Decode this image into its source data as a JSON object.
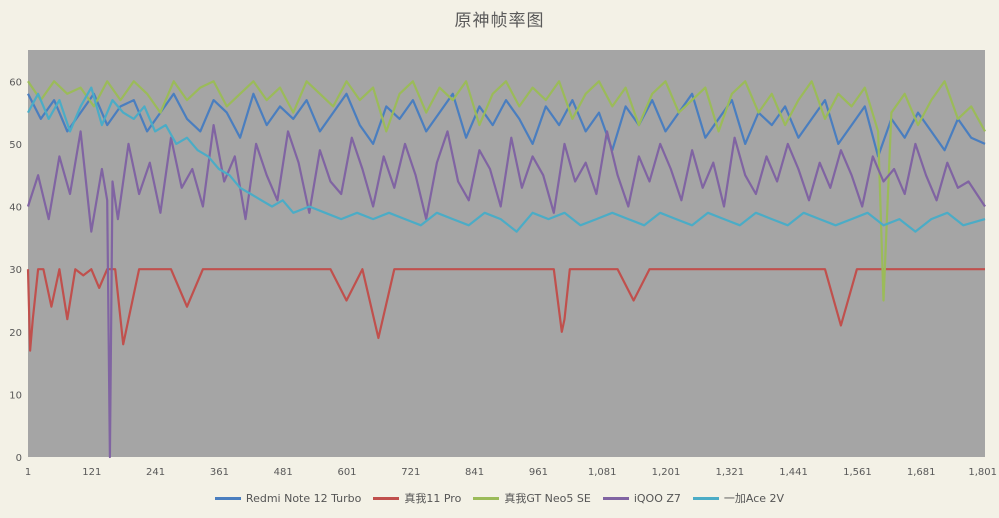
{
  "chart_data": {
    "type": "line",
    "title": "原神帧率图",
    "xlabel": "",
    "ylabel": "",
    "xlim": [
      1,
      1801
    ],
    "ylim": [
      0,
      65
    ],
    "x_ticks": [
      1,
      121,
      241,
      361,
      481,
      601,
      721,
      841,
      961,
      1081,
      1201,
      1321,
      1441,
      1561,
      1681,
      1801
    ],
    "x_tick_labels": [
      "1",
      "121",
      "241",
      "361",
      "481",
      "601",
      "721",
      "841",
      "961",
      "1,081",
      "1,201",
      "1,321",
      "1,441",
      "1,561",
      "1,681",
      "1,801"
    ],
    "y_ticks": [
      0,
      10,
      20,
      30,
      40,
      50,
      60
    ],
    "grid": false,
    "legend_position": "bottom",
    "background": "#a5a5a5",
    "series": [
      {
        "name": "Redmi Note 12 Turbo",
        "color": "#4a7ebf",
        "x": [
          1,
          25,
          50,
          75,
          100,
          125,
          150,
          175,
          200,
          225,
          250,
          275,
          300,
          325,
          350,
          375,
          400,
          425,
          450,
          475,
          500,
          525,
          550,
          575,
          600,
          625,
          650,
          675,
          700,
          725,
          750,
          775,
          800,
          825,
          850,
          875,
          900,
          925,
          950,
          975,
          1000,
          1025,
          1050,
          1075,
          1100,
          1125,
          1150,
          1175,
          1200,
          1225,
          1250,
          1275,
          1300,
          1325,
          1350,
          1375,
          1400,
          1425,
          1450,
          1475,
          1500,
          1525,
          1550,
          1575,
          1600,
          1625,
          1650,
          1675,
          1700,
          1725,
          1750,
          1775,
          1801
        ],
        "y": [
          58,
          54,
          57,
          52,
          55,
          58,
          53,
          56,
          57,
          52,
          55,
          58,
          54,
          52,
          57,
          55,
          51,
          58,
          53,
          56,
          54,
          57,
          52,
          55,
          58,
          53,
          50,
          56,
          54,
          57,
          52,
          55,
          58,
          51,
          56,
          53,
          57,
          54,
          50,
          56,
          53,
          57,
          52,
          55,
          49,
          56,
          53,
          57,
          52,
          55,
          58,
          51,
          54,
          57,
          50,
          55,
          53,
          56,
          51,
          54,
          57,
          50,
          53,
          56,
          48,
          54,
          51,
          55,
          52,
          49,
          54,
          51,
          50
        ]
      },
      {
        "name": "真我11 Pro",
        "color": "#c0504d",
        "x": [
          1,
          5,
          10,
          20,
          30,
          45,
          60,
          75,
          90,
          105,
          120,
          135,
          150,
          165,
          180,
          210,
          240,
          270,
          300,
          330,
          360,
          390,
          420,
          450,
          480,
          510,
          540,
          570,
          600,
          630,
          660,
          690,
          720,
          750,
          780,
          810,
          840,
          870,
          900,
          930,
          960,
          990,
          1005,
          1010,
          1020,
          1050,
          1080,
          1110,
          1140,
          1170,
          1200,
          1230,
          1260,
          1290,
          1320,
          1350,
          1380,
          1410,
          1440,
          1470,
          1500,
          1530,
          1560,
          1590,
          1620,
          1650,
          1680,
          1710,
          1740,
          1770,
          1801
        ],
        "y": [
          30,
          17,
          22,
          30,
          30,
          24,
          30,
          22,
          30,
          29,
          30,
          27,
          30,
          30,
          18,
          30,
          30,
          30,
          24,
          30,
          30,
          30,
          30,
          30,
          30,
          30,
          30,
          30,
          25,
          30,
          19,
          30,
          30,
          30,
          30,
          30,
          30,
          30,
          30,
          30,
          30,
          30,
          20,
          22,
          30,
          30,
          30,
          30,
          25,
          30,
          30,
          30,
          30,
          30,
          30,
          30,
          30,
          30,
          30,
          30,
          30,
          21,
          30,
          30,
          30,
          30,
          30,
          30,
          30,
          30,
          30
        ]
      },
      {
        "name": "真我GT Neo5 SE",
        "color": "#9bbb59",
        "x": [
          1,
          25,
          50,
          75,
          100,
          125,
          150,
          175,
          200,
          225,
          250,
          275,
          300,
          325,
          350,
          375,
          400,
          425,
          450,
          475,
          500,
          525,
          550,
          575,
          600,
          625,
          650,
          675,
          700,
          725,
          750,
          775,
          800,
          825,
          850,
          875,
          900,
          925,
          950,
          975,
          1000,
          1025,
          1050,
          1075,
          1100,
          1125,
          1150,
          1175,
          1200,
          1225,
          1250,
          1275,
          1300,
          1325,
          1350,
          1375,
          1400,
          1425,
          1450,
          1475,
          1500,
          1525,
          1550,
          1575,
          1600,
          1610,
          1625,
          1650,
          1675,
          1700,
          1725,
          1750,
          1775,
          1801
        ],
        "y": [
          60,
          57,
          60,
          58,
          59,
          56,
          60,
          57,
          60,
          58,
          55,
          60,
          57,
          59,
          60,
          56,
          58,
          60,
          57,
          59,
          55,
          60,
          58,
          56,
          60,
          57,
          59,
          52,
          58,
          60,
          55,
          59,
          57,
          60,
          53,
          58,
          60,
          56,
          59,
          57,
          60,
          54,
          58,
          60,
          56,
          59,
          53,
          58,
          60,
          55,
          57,
          59,
          52,
          58,
          60,
          55,
          58,
          53,
          57,
          60,
          54,
          58,
          56,
          59,
          52,
          25,
          55,
          58,
          53,
          57,
          60,
          54,
          56,
          52
        ]
      },
      {
        "name": "iQOO Z7",
        "color": "#8064a2",
        "x": [
          1,
          20,
          40,
          60,
          80,
          100,
          120,
          140,
          150,
          155,
          160,
          170,
          190,
          210,
          230,
          250,
          270,
          290,
          310,
          330,
          350,
          370,
          390,
          410,
          430,
          450,
          470,
          490,
          510,
          530,
          550,
          570,
          590,
          610,
          630,
          650,
          670,
          690,
          710,
          730,
          750,
          770,
          790,
          810,
          830,
          850,
          870,
          890,
          910,
          930,
          950,
          970,
          990,
          1010,
          1030,
          1050,
          1070,
          1090,
          1110,
          1130,
          1150,
          1170,
          1190,
          1210,
          1230,
          1250,
          1270,
          1290,
          1310,
          1330,
          1350,
          1370,
          1390,
          1410,
          1430,
          1450,
          1470,
          1490,
          1510,
          1530,
          1550,
          1570,
          1590,
          1610,
          1630,
          1650,
          1670,
          1690,
          1710,
          1730,
          1750,
          1770,
          1801
        ],
        "y": [
          40,
          45,
          38,
          48,
          42,
          52,
          36,
          46,
          41,
          0,
          44,
          38,
          50,
          42,
          47,
          39,
          51,
          43,
          46,
          40,
          53,
          44,
          48,
          38,
          50,
          45,
          41,
          52,
          47,
          39,
          49,
          44,
          42,
          51,
          46,
          40,
          48,
          43,
          50,
          45,
          38,
          47,
          52,
          44,
          41,
          49,
          46,
          40,
          51,
          43,
          48,
          45,
          39,
          50,
          44,
          47,
          42,
          52,
          45,
          40,
          48,
          44,
          50,
          46,
          41,
          49,
          43,
          47,
          40,
          51,
          45,
          42,
          48,
          44,
          50,
          46,
          41,
          47,
          43,
          49,
          45,
          40,
          48,
          44,
          46,
          42,
          50,
          45,
          41,
          47,
          43,
          44,
          40
        ]
      },
      {
        "name": "一加Ace 2V",
        "color": "#4bacc6",
        "x": [
          1,
          20,
          40,
          60,
          80,
          100,
          120,
          140,
          160,
          180,
          200,
          220,
          240,
          260,
          280,
          300,
          320,
          340,
          360,
          380,
          400,
          420,
          440,
          460,
          480,
          500,
          530,
          560,
          590,
          620,
          650,
          680,
          710,
          740,
          770,
          800,
          830,
          860,
          890,
          920,
          950,
          980,
          1010,
          1040,
          1070,
          1100,
          1130,
          1160,
          1190,
          1220,
          1250,
          1280,
          1310,
          1340,
          1370,
          1400,
          1430,
          1460,
          1490,
          1520,
          1550,
          1580,
          1610,
          1640,
          1670,
          1700,
          1730,
          1760,
          1801
        ],
        "y": [
          55,
          58,
          54,
          57,
          52,
          56,
          59,
          53,
          57,
          55,
          54,
          56,
          52,
          53,
          50,
          51,
          49,
          48,
          46,
          45,
          43,
          42,
          41,
          40,
          41,
          39,
          40,
          39,
          38,
          39,
          38,
          39,
          38,
          37,
          39,
          38,
          37,
          39,
          38,
          36,
          39,
          38,
          39,
          37,
          38,
          39,
          38,
          37,
          39,
          38,
          37,
          39,
          38,
          37,
          39,
          38,
          37,
          39,
          38,
          37,
          38,
          39,
          37,
          38,
          36,
          38,
          39,
          37,
          38
        ]
      }
    ]
  }
}
